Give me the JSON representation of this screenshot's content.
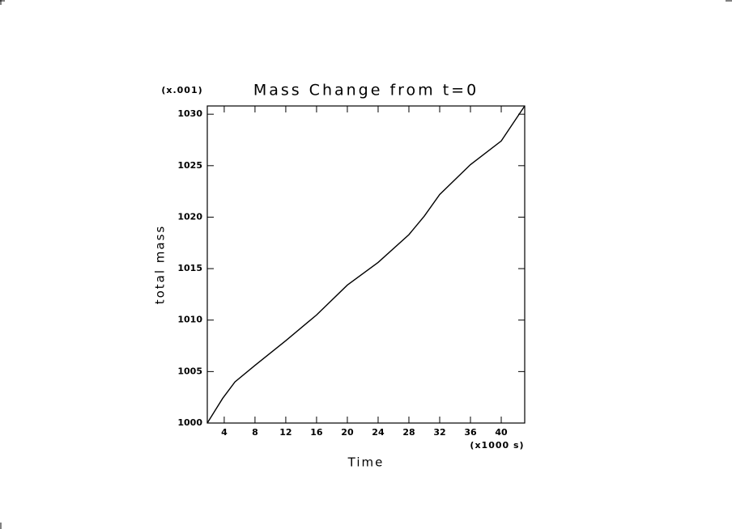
{
  "chart_data": {
    "type": "line",
    "title": "Mass Change from t=0",
    "y_scale_note": "(x.001)",
    "x_scale_note": "(x1000 s)",
    "x_label": "Time",
    "y_label": "total mass",
    "x": [
      1.8,
      3.8,
      5.4,
      8,
      12,
      16,
      20,
      24,
      28,
      30,
      32,
      36,
      40,
      43.05
    ],
    "series": [
      {
        "color": "#000000",
        "values": [
          1000,
          1002.4,
          1004,
          1005.6,
          1008,
          1010.5,
          1013.4,
          1015.6,
          1018.3,
          1020.1,
          1022.2,
          1025.1,
          1027.4,
          1030.8
        ]
      }
    ],
    "xlim": [
      1.8,
      43.05
    ],
    "ylim": [
      1000,
      1030.8
    ],
    "xticks": [
      4,
      8,
      12,
      16,
      20,
      24,
      28,
      32,
      36,
      40
    ],
    "yticks": [
      1000,
      1005,
      1010,
      1015,
      1020,
      1025,
      1030
    ]
  }
}
